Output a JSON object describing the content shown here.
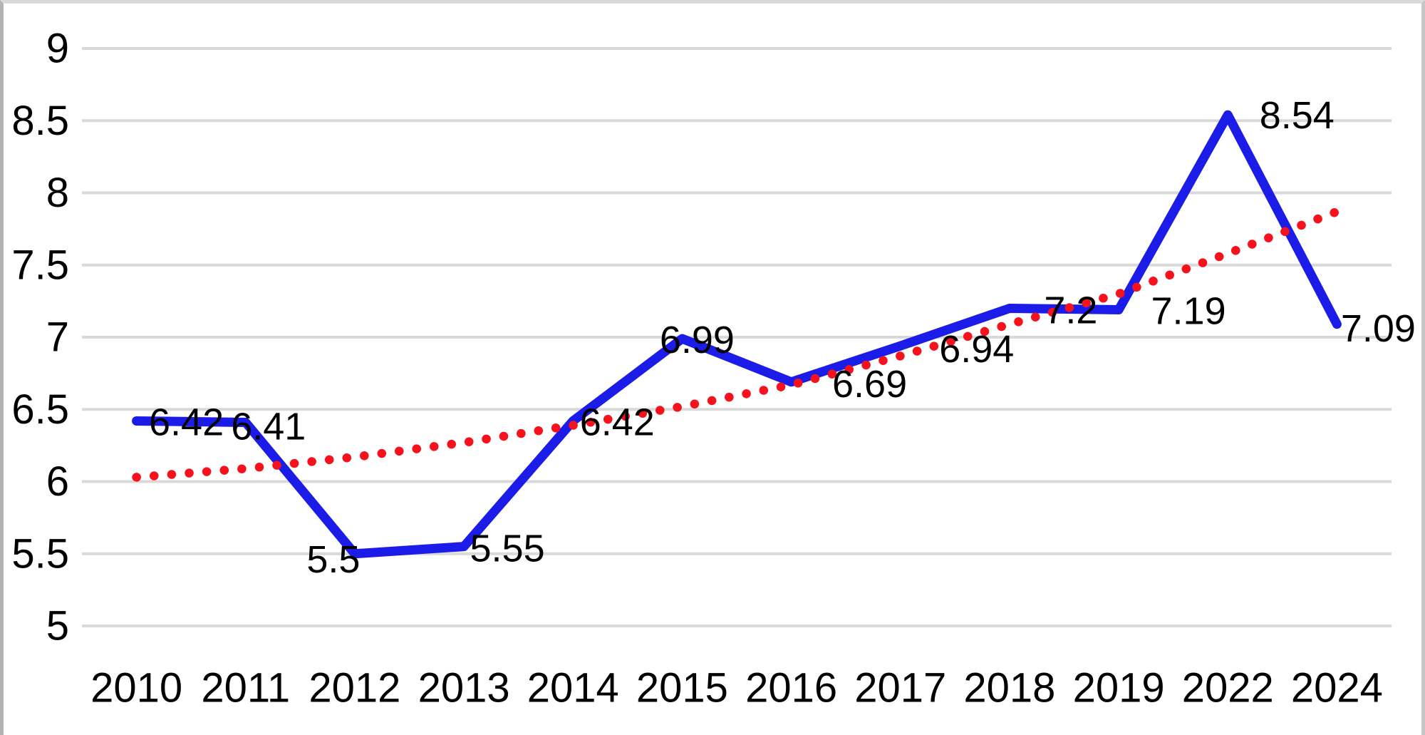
{
  "chart_data": {
    "type": "line",
    "title": "",
    "subtitle": "",
    "xlabel": "",
    "ylabel": "",
    "categories": [
      "2010",
      "2011",
      "2012",
      "2013",
      "2014",
      "2015",
      "2016",
      "2017",
      "2018",
      "2019",
      "2022",
      "2024"
    ],
    "series": [
      {
        "name": "main-series",
        "type": "line",
        "color": "#1c1ce8",
        "stroke_width": 13,
        "values": [
          6.42,
          6.41,
          5.5,
          5.55,
          6.42,
          6.99,
          6.69,
          6.94,
          7.2,
          7.19,
          8.54,
          7.09
        ],
        "data_labels": [
          "6.42",
          "6.41",
          "5.5",
          "5.55",
          "6.42",
          "6.99",
          "6.69",
          "6.94",
          "7.2",
          "7.19",
          "8.54",
          "7.09"
        ],
        "label_offsets": [
          [
            70,
            2
          ],
          [
            32,
            6
          ],
          [
            -30,
            8
          ],
          [
            61,
            3
          ],
          [
            62,
            2
          ],
          [
            21,
            2
          ],
          [
            110,
            3
          ],
          [
            107,
            5
          ],
          [
            86,
            3
          ],
          [
            98,
            2
          ],
          [
            97,
            1
          ],
          [
            58,
            6
          ]
        ]
      },
      {
        "name": "trendline",
        "type": "dotted-line",
        "color": "#f6111c",
        "stroke_width": 12.5,
        "values": [
          6.03,
          6.09,
          6.17,
          6.27,
          6.39,
          6.52,
          6.67,
          6.87,
          7.09,
          7.3,
          7.58,
          7.87
        ]
      }
    ],
    "ylim": [
      5,
      9
    ],
    "yticks": [
      "5",
      "5.5",
      "6",
      "6.5",
      "7",
      "7.5",
      "8",
      "8.5",
      "9"
    ],
    "grid": true,
    "gridline_color": "#d9d9d9",
    "legend_position": "none",
    "background": "#ffffff",
    "text_color": "#000000",
    "tick_font_size": 58,
    "data_label_font_size": 54
  }
}
